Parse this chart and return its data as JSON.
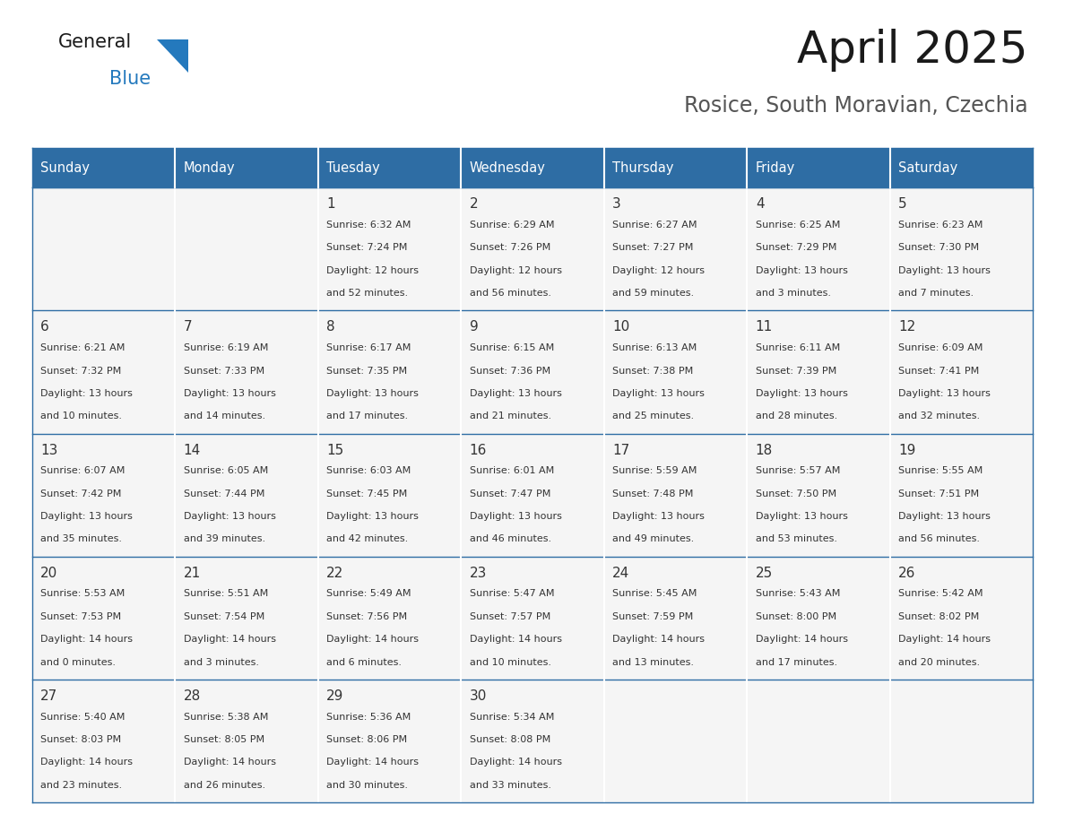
{
  "title": "April 2025",
  "subtitle": "Rosice, South Moravian, Czechia",
  "header_bg_color": "#2E6DA4",
  "header_text_color": "#FFFFFF",
  "cell_bg_color": "#F5F5F5",
  "border_color": "#2E6DA4",
  "day_names": [
    "Sunday",
    "Monday",
    "Tuesday",
    "Wednesday",
    "Thursday",
    "Friday",
    "Saturday"
  ],
  "logo_color1": "#1a1a1a",
  "logo_color2": "#2479BD",
  "title_color": "#1a1a1a",
  "subtitle_color": "#555555",
  "calendar_data": [
    [
      {
        "day": "",
        "sunrise": "",
        "sunset": "",
        "daylight": ""
      },
      {
        "day": "",
        "sunrise": "",
        "sunset": "",
        "daylight": ""
      },
      {
        "day": "1",
        "sunrise": "6:32 AM",
        "sunset": "7:24 PM",
        "daylight": "12 hours and 52 minutes."
      },
      {
        "day": "2",
        "sunrise": "6:29 AM",
        "sunset": "7:26 PM",
        "daylight": "12 hours and 56 minutes."
      },
      {
        "day": "3",
        "sunrise": "6:27 AM",
        "sunset": "7:27 PM",
        "daylight": "12 hours and 59 minutes."
      },
      {
        "day": "4",
        "sunrise": "6:25 AM",
        "sunset": "7:29 PM",
        "daylight": "13 hours and 3 minutes."
      },
      {
        "day": "5",
        "sunrise": "6:23 AM",
        "sunset": "7:30 PM",
        "daylight": "13 hours and 7 minutes."
      }
    ],
    [
      {
        "day": "6",
        "sunrise": "6:21 AM",
        "sunset": "7:32 PM",
        "daylight": "13 hours and 10 minutes."
      },
      {
        "day": "7",
        "sunrise": "6:19 AM",
        "sunset": "7:33 PM",
        "daylight": "13 hours and 14 minutes."
      },
      {
        "day": "8",
        "sunrise": "6:17 AM",
        "sunset": "7:35 PM",
        "daylight": "13 hours and 17 minutes."
      },
      {
        "day": "9",
        "sunrise": "6:15 AM",
        "sunset": "7:36 PM",
        "daylight": "13 hours and 21 minutes."
      },
      {
        "day": "10",
        "sunrise": "6:13 AM",
        "sunset": "7:38 PM",
        "daylight": "13 hours and 25 minutes."
      },
      {
        "day": "11",
        "sunrise": "6:11 AM",
        "sunset": "7:39 PM",
        "daylight": "13 hours and 28 minutes."
      },
      {
        "day": "12",
        "sunrise": "6:09 AM",
        "sunset": "7:41 PM",
        "daylight": "13 hours and 32 minutes."
      }
    ],
    [
      {
        "day": "13",
        "sunrise": "6:07 AM",
        "sunset": "7:42 PM",
        "daylight": "13 hours and 35 minutes."
      },
      {
        "day": "14",
        "sunrise": "6:05 AM",
        "sunset": "7:44 PM",
        "daylight": "13 hours and 39 minutes."
      },
      {
        "day": "15",
        "sunrise": "6:03 AM",
        "sunset": "7:45 PM",
        "daylight": "13 hours and 42 minutes."
      },
      {
        "day": "16",
        "sunrise": "6:01 AM",
        "sunset": "7:47 PM",
        "daylight": "13 hours and 46 minutes."
      },
      {
        "day": "17",
        "sunrise": "5:59 AM",
        "sunset": "7:48 PM",
        "daylight": "13 hours and 49 minutes."
      },
      {
        "day": "18",
        "sunrise": "5:57 AM",
        "sunset": "7:50 PM",
        "daylight": "13 hours and 53 minutes."
      },
      {
        "day": "19",
        "sunrise": "5:55 AM",
        "sunset": "7:51 PM",
        "daylight": "13 hours and 56 minutes."
      }
    ],
    [
      {
        "day": "20",
        "sunrise": "5:53 AM",
        "sunset": "7:53 PM",
        "daylight": "14 hours and 0 minutes."
      },
      {
        "day": "21",
        "sunrise": "5:51 AM",
        "sunset": "7:54 PM",
        "daylight": "14 hours and 3 minutes."
      },
      {
        "day": "22",
        "sunrise": "5:49 AM",
        "sunset": "7:56 PM",
        "daylight": "14 hours and 6 minutes."
      },
      {
        "day": "23",
        "sunrise": "5:47 AM",
        "sunset": "7:57 PM",
        "daylight": "14 hours and 10 minutes."
      },
      {
        "day": "24",
        "sunrise": "5:45 AM",
        "sunset": "7:59 PM",
        "daylight": "14 hours and 13 minutes."
      },
      {
        "day": "25",
        "sunrise": "5:43 AM",
        "sunset": "8:00 PM",
        "daylight": "14 hours and 17 minutes."
      },
      {
        "day": "26",
        "sunrise": "5:42 AM",
        "sunset": "8:02 PM",
        "daylight": "14 hours and 20 minutes."
      }
    ],
    [
      {
        "day": "27",
        "sunrise": "5:40 AM",
        "sunset": "8:03 PM",
        "daylight": "14 hours and 23 minutes."
      },
      {
        "day": "28",
        "sunrise": "5:38 AM",
        "sunset": "8:05 PM",
        "daylight": "14 hours and 26 minutes."
      },
      {
        "day": "29",
        "sunrise": "5:36 AM",
        "sunset": "8:06 PM",
        "daylight": "14 hours and 30 minutes."
      },
      {
        "day": "30",
        "sunrise": "5:34 AM",
        "sunset": "8:08 PM",
        "daylight": "14 hours and 33 minutes."
      },
      {
        "day": "",
        "sunrise": "",
        "sunset": "",
        "daylight": ""
      },
      {
        "day": "",
        "sunrise": "",
        "sunset": "",
        "daylight": ""
      },
      {
        "day": "",
        "sunrise": "",
        "sunset": "",
        "daylight": ""
      }
    ]
  ]
}
